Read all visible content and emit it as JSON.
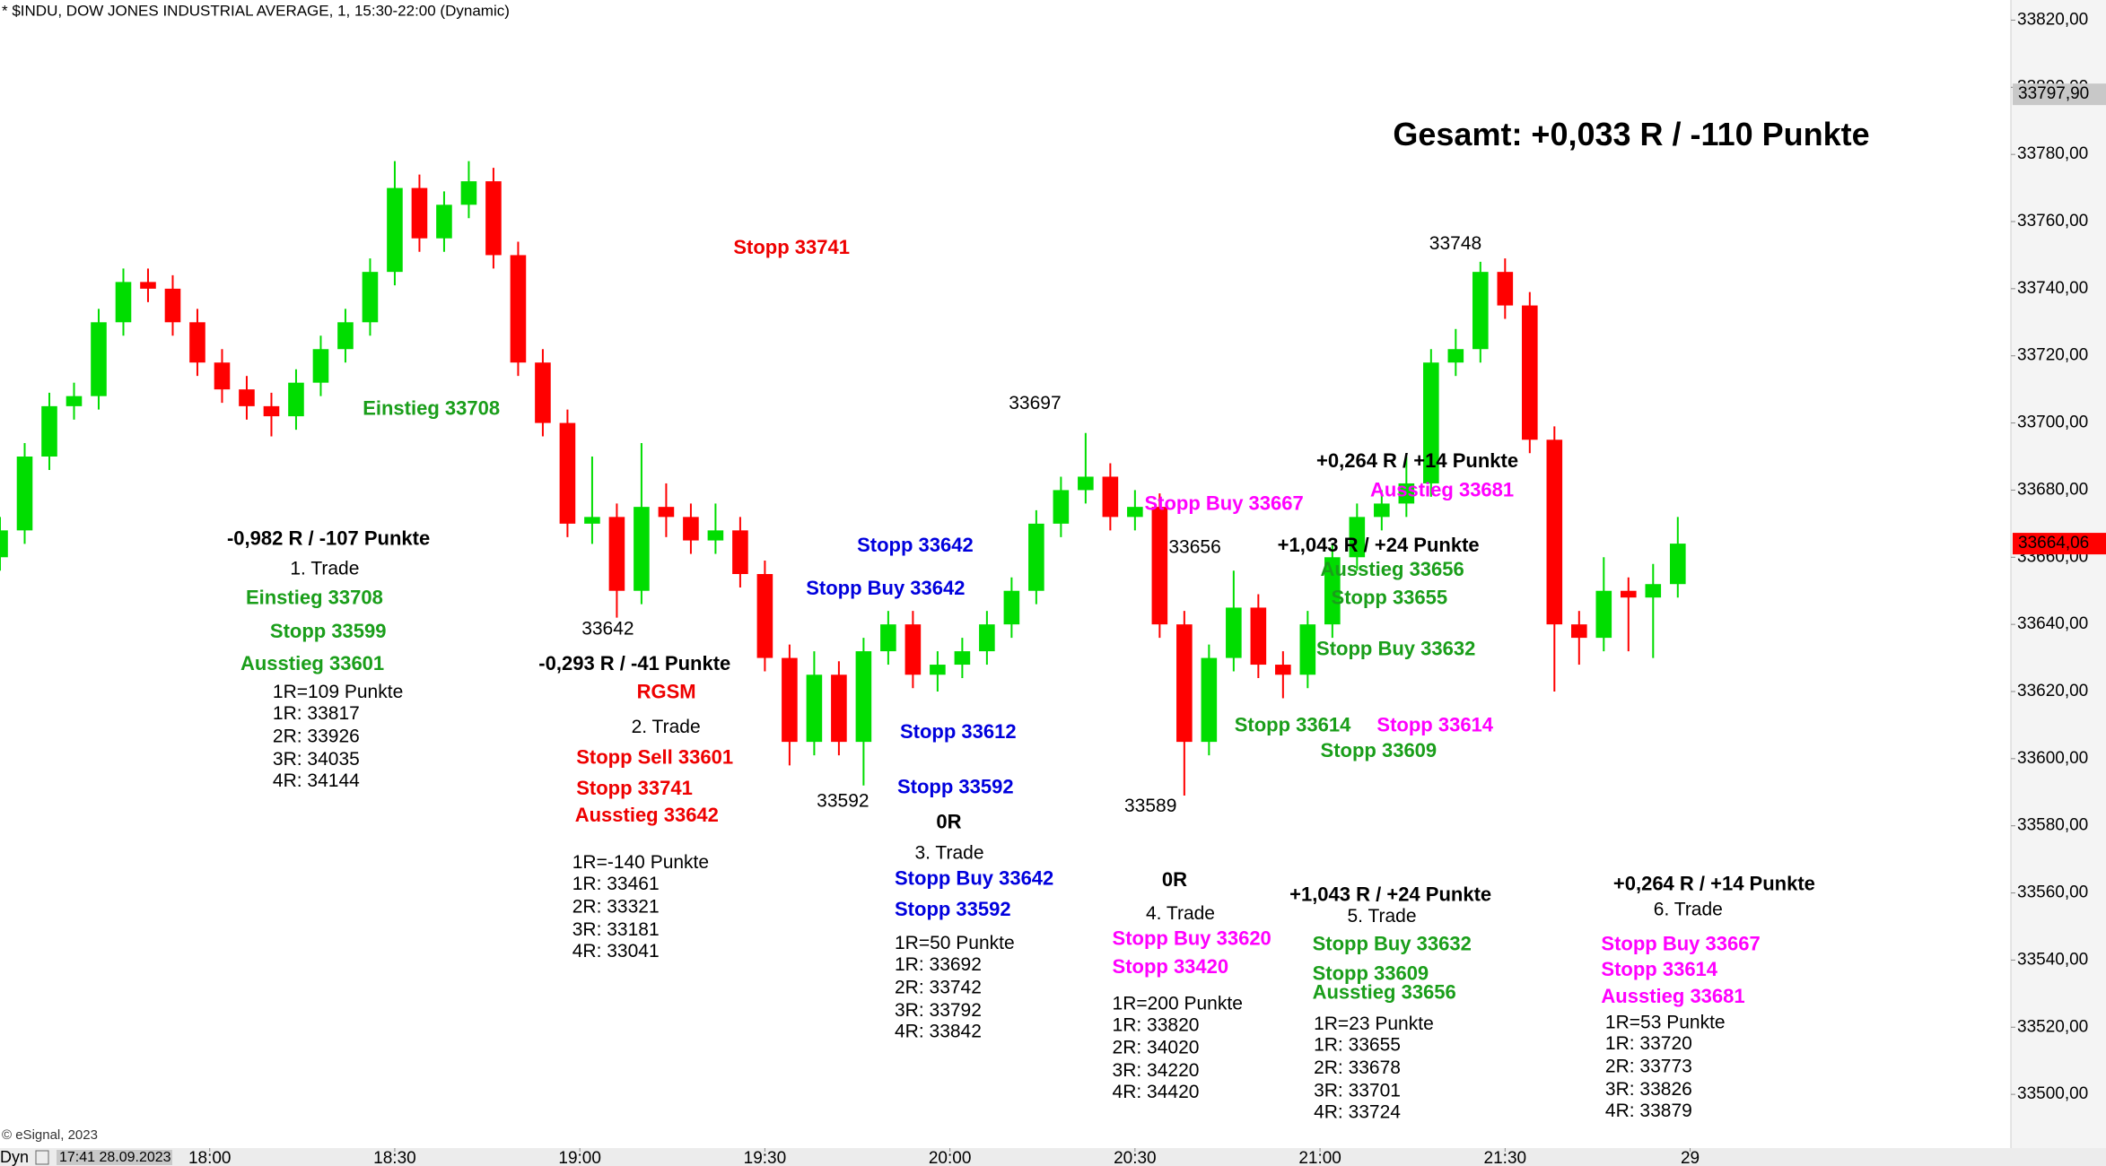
{
  "chart_data": {
    "type": "candlestick",
    "title": "* $INDU, DOW JONES INDUSTRIAL AVERAGE, 1, 15:30-22:00 (Dynamic)",
    "up_color": "#00dd00",
    "down_color": "#ff0000",
    "grid": false,
    "xlim": [
      "17:26",
      "22:52"
    ],
    "xticks": [
      "18:00",
      "18:30",
      "19:00",
      "19:30",
      "20:00",
      "20:30",
      "21:00",
      "21:30",
      {
        "value": "22:00",
        "label": "29"
      }
    ],
    "ylim": [
      33484,
      33826
    ],
    "yticks": [
      {
        "value": 33500,
        "label": "33500,00"
      },
      {
        "value": 33520,
        "label": "33520,00"
      },
      {
        "value": 33540,
        "label": "33540,00"
      },
      {
        "value": 33560,
        "label": "33560,00"
      },
      {
        "value": 33580,
        "label": "33580,00"
      },
      {
        "value": 33600,
        "label": "33600,00"
      },
      {
        "value": 33620,
        "label": "33620,00"
      },
      {
        "value": 33640,
        "label": "33640,00"
      },
      {
        "value": 33660,
        "label": "33660,00"
      },
      {
        "value": 33680,
        "label": "33680,00"
      },
      {
        "value": 33700,
        "label": "33700,00"
      },
      {
        "value": 33720,
        "label": "33720,00"
      },
      {
        "value": 33740,
        "label": "33740,00"
      },
      {
        "value": 33760,
        "label": "33760,00"
      },
      {
        "value": 33780,
        "label": "33780,00"
      },
      {
        "value": 33800,
        "label": "33800,00"
      },
      {
        "value": 33820,
        "label": "33820,00"
      }
    ],
    "price_labels": [
      {
        "value": 33797.9,
        "label": "33797,90",
        "color": "#c8c8c8"
      },
      {
        "value": 33664.06,
        "label": "33664,06",
        "color": "#ff0000"
      }
    ],
    "x": [
      "17:26",
      "17:30",
      "17:34",
      "17:38",
      "17:42",
      "17:46",
      "17:50",
      "17:54",
      "17:58",
      "18:02",
      "18:06",
      "18:10",
      "18:14",
      "18:18",
      "18:22",
      "18:26",
      "18:30",
      "18:34",
      "18:38",
      "18:42",
      "18:46",
      "18:50",
      "18:54",
      "18:58",
      "19:02",
      "19:06",
      "19:10",
      "19:14",
      "19:18",
      "19:22",
      "19:26",
      "19:30",
      "19:34",
      "19:38",
      "19:42",
      "19:46",
      "19:50",
      "19:54",
      "19:58",
      "20:02",
      "20:06",
      "20:10",
      "20:14",
      "20:18",
      "20:22",
      "20:26",
      "20:30",
      "20:34",
      "20:38",
      "20:42",
      "20:46",
      "20:50",
      "20:54",
      "20:58",
      "21:02",
      "21:06",
      "21:10",
      "21:14",
      "21:18",
      "21:22",
      "21:26",
      "21:30",
      "21:34",
      "21:38",
      "21:42",
      "21:46",
      "21:50",
      "21:54",
      "21:58"
    ],
    "open": [
      33660,
      33668,
      33690,
      33705,
      33708,
      33730,
      33742,
      33740,
      33730,
      33718,
      33710,
      33705,
      33702,
      33712,
      33722,
      33730,
      33745,
      33770,
      33755,
      33765,
      33772,
      33750,
      33718,
      33700,
      33670,
      33672,
      33650,
      33675,
      33672,
      33665,
      33668,
      33655,
      33630,
      33605,
      33625,
      33605,
      33632,
      33640,
      33625,
      33628,
      33632,
      33640,
      33650,
      33670,
      33680,
      33684,
      33672,
      33675,
      33640,
      33605,
      33630,
      33645,
      33628,
      33625,
      33640,
      33660,
      33672,
      33676,
      33682,
      33718,
      33722,
      33745,
      33735,
      33695,
      33640,
      33636,
      33650,
      33648,
      33652
    ],
    "high": [
      33672,
      33694,
      33709,
      33712,
      33734,
      33746,
      33746,
      33744,
      33734,
      33722,
      33714,
      33709,
      33716,
      33726,
      33734,
      33749,
      33778,
      33774,
      33769,
      33778,
      33776,
      33754,
      33722,
      33704,
      33690,
      33676,
      33694,
      33682,
      33676,
      33676,
      33672,
      33659,
      33634,
      33632,
      33629,
      33636,
      33644,
      33644,
      33632,
      33636,
      33644,
      33654,
      33674,
      33684,
      33697,
      33688,
      33680,
      33679,
      33644,
      33634,
      33656,
      33649,
      33632,
      33644,
      33664,
      33676,
      33680,
      33690,
      33722,
      33728,
      33748,
      33749,
      33739,
      33699,
      33644,
      33660,
      33654,
      33658,
      33672
    ],
    "low": [
      33656,
      33664,
      33686,
      33701,
      33704,
      33726,
      33736,
      33726,
      33714,
      33706,
      33701,
      33696,
      33698,
      33708,
      33718,
      33726,
      33741,
      33751,
      33751,
      33761,
      33746,
      33714,
      33696,
      33666,
      33664,
      33642,
      33646,
      33666,
      33661,
      33661,
      33651,
      33626,
      33598,
      33601,
      33601,
      33592,
      33628,
      33621,
      33620,
      33624,
      33628,
      33636,
      33646,
      33666,
      33676,
      33668,
      33668,
      33636,
      33589,
      33601,
      33626,
      33624,
      33618,
      33621,
      33636,
      33656,
      33668,
      33672,
      33678,
      33714,
      33718,
      33731,
      33691,
      33620,
      33628,
      33632,
      33632,
      33630,
      33648
    ],
    "close": [
      33668,
      33690,
      33705,
      33708,
      33730,
      33742,
      33740,
      33730,
      33718,
      33710,
      33705,
      33702,
      33712,
      33722,
      33730,
      33745,
      33770,
      33755,
      33765,
      33772,
      33750,
      33718,
      33700,
      33670,
      33672,
      33650,
      33675,
      33672,
      33665,
      33668,
      33655,
      33630,
      33605,
      33625,
      33605,
      33632,
      33640,
      33625,
      33628,
      33632,
      33640,
      33650,
      33670,
      33680,
      33684,
      33672,
      33675,
      33640,
      33605,
      33630,
      33645,
      33628,
      33625,
      33640,
      33660,
      33672,
      33676,
      33682,
      33718,
      33722,
      33745,
      33735,
      33695,
      33640,
      33636,
      33650,
      33648,
      33652,
      33664.06
    ],
    "annotations": [
      {
        "text": "Gesamt: +0,033 R / -110 Punkte",
        "color": "#000000",
        "bold": true
      },
      {
        "text": "Stopp 33741",
        "color": "#ee0000",
        "bold": true
      },
      {
        "text": "Einstieg 33708",
        "color": "#1a9e1a",
        "bold": true
      },
      {
        "text": "-0,982 R / -107 Punkte",
        "color": "#000000",
        "bold": true
      },
      {
        "text": "1. Trade",
        "color": "#000000"
      },
      {
        "text": "Einstieg 33708",
        "color": "#1a9e1a",
        "bold": true
      },
      {
        "text": "Stopp 33599",
        "color": "#1a9e1a",
        "bold": true
      },
      {
        "text": "Ausstieg 33601",
        "color": "#1a9e1a",
        "bold": true
      },
      {
        "text": "1R=109 Punkte",
        "color": "#000000"
      },
      {
        "text": "1R: 33817",
        "color": "#000000"
      },
      {
        "text": "2R: 33926",
        "color": "#000000"
      },
      {
        "text": "3R: 34035",
        "color": "#000000"
      },
      {
        "text": "4R: 34144",
        "color": "#000000"
      },
      {
        "text": "33642",
        "color": "#000000"
      },
      {
        "text": "-0,293 R / -41 Punkte",
        "color": "#000000",
        "bold": true
      },
      {
        "text": "RGSM",
        "color": "#ee0000",
        "bold": true
      },
      {
        "text": "2. Trade",
        "color": "#000000"
      },
      {
        "text": "Stopp Sell 33601",
        "color": "#ee0000",
        "bold": true
      },
      {
        "text": "Stopp 33741",
        "color": "#ee0000",
        "bold": true
      },
      {
        "text": "Ausstieg 33642",
        "color": "#ee0000",
        "bold": true
      },
      {
        "text": "1R=-140 Punkte",
        "color": "#000000"
      },
      {
        "text": "1R: 33461",
        "color": "#000000"
      },
      {
        "text": "2R: 33321",
        "color": "#000000"
      },
      {
        "text": "3R: 33181",
        "color": "#000000"
      },
      {
        "text": "4R: 33041",
        "color": "#000000"
      },
      {
        "text": "33592",
        "color": "#000000"
      },
      {
        "text": "Stopp 33642",
        "color": "#0000dd",
        "bold": true
      },
      {
        "text": "Stopp Buy 33642",
        "color": "#0000dd",
        "bold": true
      },
      {
        "text": "Stopp 33612",
        "color": "#0000dd",
        "bold": true
      },
      {
        "text": "Stopp 33592",
        "color": "#0000dd",
        "bold": true
      },
      {
        "text": "0R",
        "color": "#000000",
        "bold": true
      },
      {
        "text": "3. Trade",
        "color": "#000000"
      },
      {
        "text": "Stopp Buy 33642",
        "color": "#0000dd",
        "bold": true
      },
      {
        "text": "Stopp 33592",
        "color": "#0000dd",
        "bold": true
      },
      {
        "text": "1R=50 Punkte",
        "color": "#000000"
      },
      {
        "text": "1R: 33692",
        "color": "#000000"
      },
      {
        "text": "2R: 33742",
        "color": "#000000"
      },
      {
        "text": "3R: 33792",
        "color": "#000000"
      },
      {
        "text": "4R: 33842",
        "color": "#000000"
      },
      {
        "text": "33697",
        "color": "#000000"
      },
      {
        "text": "33656",
        "color": "#000000"
      },
      {
        "text": "Stopp Buy 33667",
        "color": "#ff00ff",
        "bold": true
      },
      {
        "text": "33589",
        "color": "#000000"
      },
      {
        "text": "0R",
        "color": "#000000",
        "bold": true
      },
      {
        "text": "4. Trade",
        "color": "#000000"
      },
      {
        "text": "Stopp Buy 33620",
        "color": "#ff00ff",
        "bold": true
      },
      {
        "text": "Stopp 33420",
        "color": "#ff00ff",
        "bold": true
      },
      {
        "text": "1R=200 Punkte",
        "color": "#000000"
      },
      {
        "text": "1R: 33820",
        "color": "#000000"
      },
      {
        "text": "2R: 34020",
        "color": "#000000"
      },
      {
        "text": "3R: 34220",
        "color": "#000000"
      },
      {
        "text": "4R: 34420",
        "color": "#000000"
      },
      {
        "text": "+1,043 R / +24 Punkte",
        "color": "#000000",
        "bold": true
      },
      {
        "text": "Ausstieg 33656",
        "color": "#1a9e1a",
        "bold": true
      },
      {
        "text": "Stopp 33655",
        "color": "#1a9e1a",
        "bold": true
      },
      {
        "text": "Stopp Buy 33632",
        "color": "#1a9e1a",
        "bold": true
      },
      {
        "text": "Stopp 33614",
        "color": "#1a9e1a",
        "bold": true
      },
      {
        "text": "Stopp 33614",
        "color": "#ff00ff",
        "bold": true
      },
      {
        "text": "Stopp 33609",
        "color": "#1a9e1a",
        "bold": true
      },
      {
        "text": "+1,043 R / +24 Punkte",
        "color": "#000000",
        "bold": true
      },
      {
        "text": "5. Trade",
        "color": "#000000"
      },
      {
        "text": "Stopp Buy 33632",
        "color": "#1a9e1a",
        "bold": true
      },
      {
        "text": "Stopp 33609",
        "color": "#1a9e1a",
        "bold": true
      },
      {
        "text": "Ausstieg 33656",
        "color": "#1a9e1a",
        "bold": true
      },
      {
        "text": "1R=23 Punkte",
        "color": "#000000"
      },
      {
        "text": "1R: 33655",
        "color": "#000000"
      },
      {
        "text": "2R: 33678",
        "color": "#000000"
      },
      {
        "text": "3R: 33701",
        "color": "#000000"
      },
      {
        "text": "4R: 33724",
        "color": "#000000"
      },
      {
        "text": "33748",
        "color": "#000000"
      },
      {
        "text": "+0,264 R / +14 Punkte",
        "color": "#000000",
        "bold": true
      },
      {
        "text": "Ausstieg 33681",
        "color": "#ff00ff",
        "bold": true
      },
      {
        "text": "+0,264 R / +14 Punkte",
        "color": "#000000",
        "bold": true
      },
      {
        "text": "6. Trade",
        "color": "#000000"
      },
      {
        "text": "Stopp Buy 33667",
        "color": "#ff00ff",
        "bold": true
      },
      {
        "text": "Stopp 33614",
        "color": "#ff00ff",
        "bold": true
      },
      {
        "text": "Ausstieg 33681",
        "color": "#ff00ff",
        "bold": true
      },
      {
        "text": "1R=53 Punkte",
        "color": "#000000"
      },
      {
        "text": "1R: 33720",
        "color": "#000000"
      },
      {
        "text": "2R: 33773",
        "color": "#000000"
      },
      {
        "text": "3R: 33826",
        "color": "#000000"
      },
      {
        "text": "4R: 33879",
        "color": "#000000"
      }
    ]
  },
  "footer": {
    "mode": "Dyn",
    "cursor": "17:41 28.09.2023",
    "copyright": "© eSignal, 2023"
  }
}
